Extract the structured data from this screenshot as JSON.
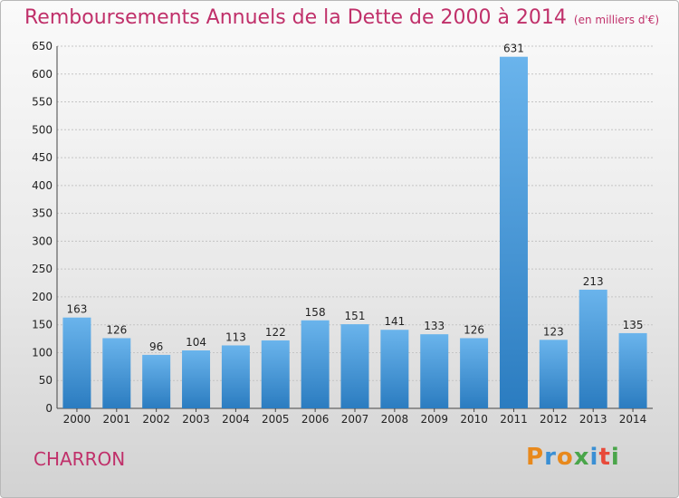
{
  "header": {
    "title": "Remboursements Annuels de la Dette de 2000 à 2014",
    "unit": "(en milliers d'€)"
  },
  "footer": {
    "city": "CHARRON",
    "logo": "Proxiti"
  },
  "colors": {
    "title": "#c0306a",
    "bar_top": "#6ab4ec",
    "bar_bottom": "#2b7cc0"
  },
  "chart_data": {
    "type": "bar",
    "title": "Remboursements Annuels de la Dette de 2000 à 2014",
    "xlabel": "",
    "ylabel": "",
    "categories": [
      "2000",
      "2001",
      "2002",
      "2003",
      "2004",
      "2005",
      "2006",
      "2007",
      "2008",
      "2009",
      "2010",
      "2011",
      "2012",
      "2013",
      "2014"
    ],
    "values": [
      163,
      126,
      96,
      104,
      113,
      122,
      158,
      151,
      141,
      133,
      126,
      631,
      123,
      213,
      135
    ],
    "ylim": [
      0,
      650
    ],
    "yticks": [
      0,
      50,
      100,
      150,
      200,
      250,
      300,
      350,
      400,
      450,
      500,
      550,
      600,
      650
    ],
    "grid": true
  }
}
